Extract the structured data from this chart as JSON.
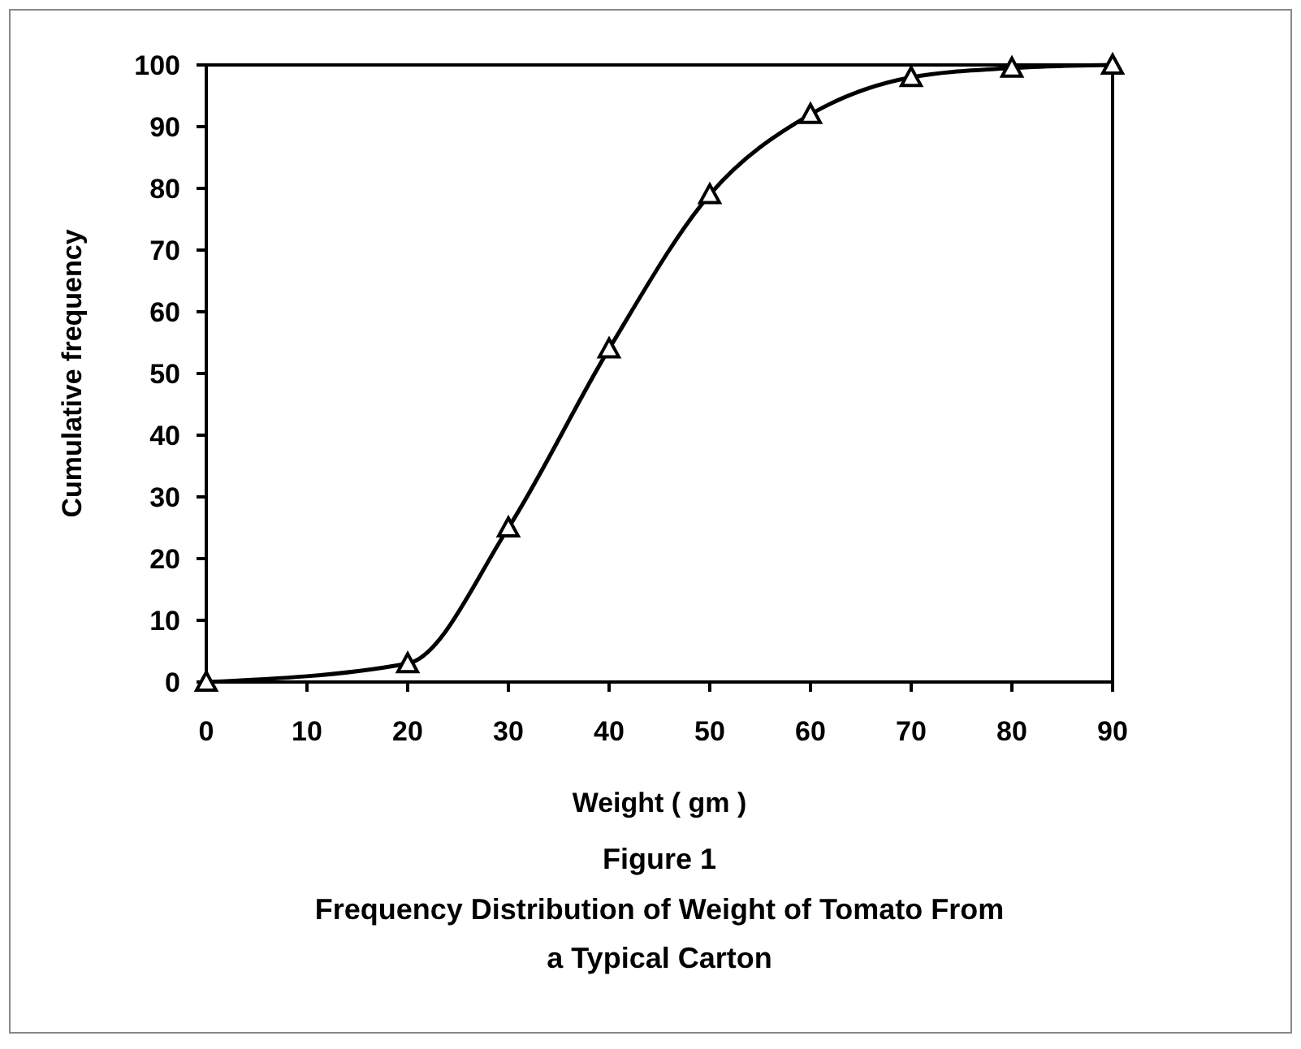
{
  "chart_data": {
    "type": "line",
    "title": "Figure 1",
    "subtitle": "Frequency Distribution of Weight of Tomato From a Typical Carton",
    "xlabel": "Weight ( gm )",
    "ylabel": "Cumulative frequency",
    "x": [
      0,
      20,
      30,
      40,
      50,
      60,
      70,
      80,
      90
    ],
    "series": [
      {
        "color": "#000000",
        "values": [
          0,
          3,
          25,
          54,
          79,
          92,
          98,
          99.5,
          100
        ]
      }
    ],
    "xlim": [
      0,
      90
    ],
    "xticks": [
      0,
      10,
      20,
      30,
      40,
      50,
      60,
      70,
      80,
      90
    ],
    "ylim": [
      0,
      100
    ],
    "yticks": [
      0,
      10,
      20,
      30,
      40,
      50,
      60,
      70,
      80,
      90,
      100
    ],
    "grid": false,
    "marker": "triangle",
    "line_style": "solid"
  }
}
